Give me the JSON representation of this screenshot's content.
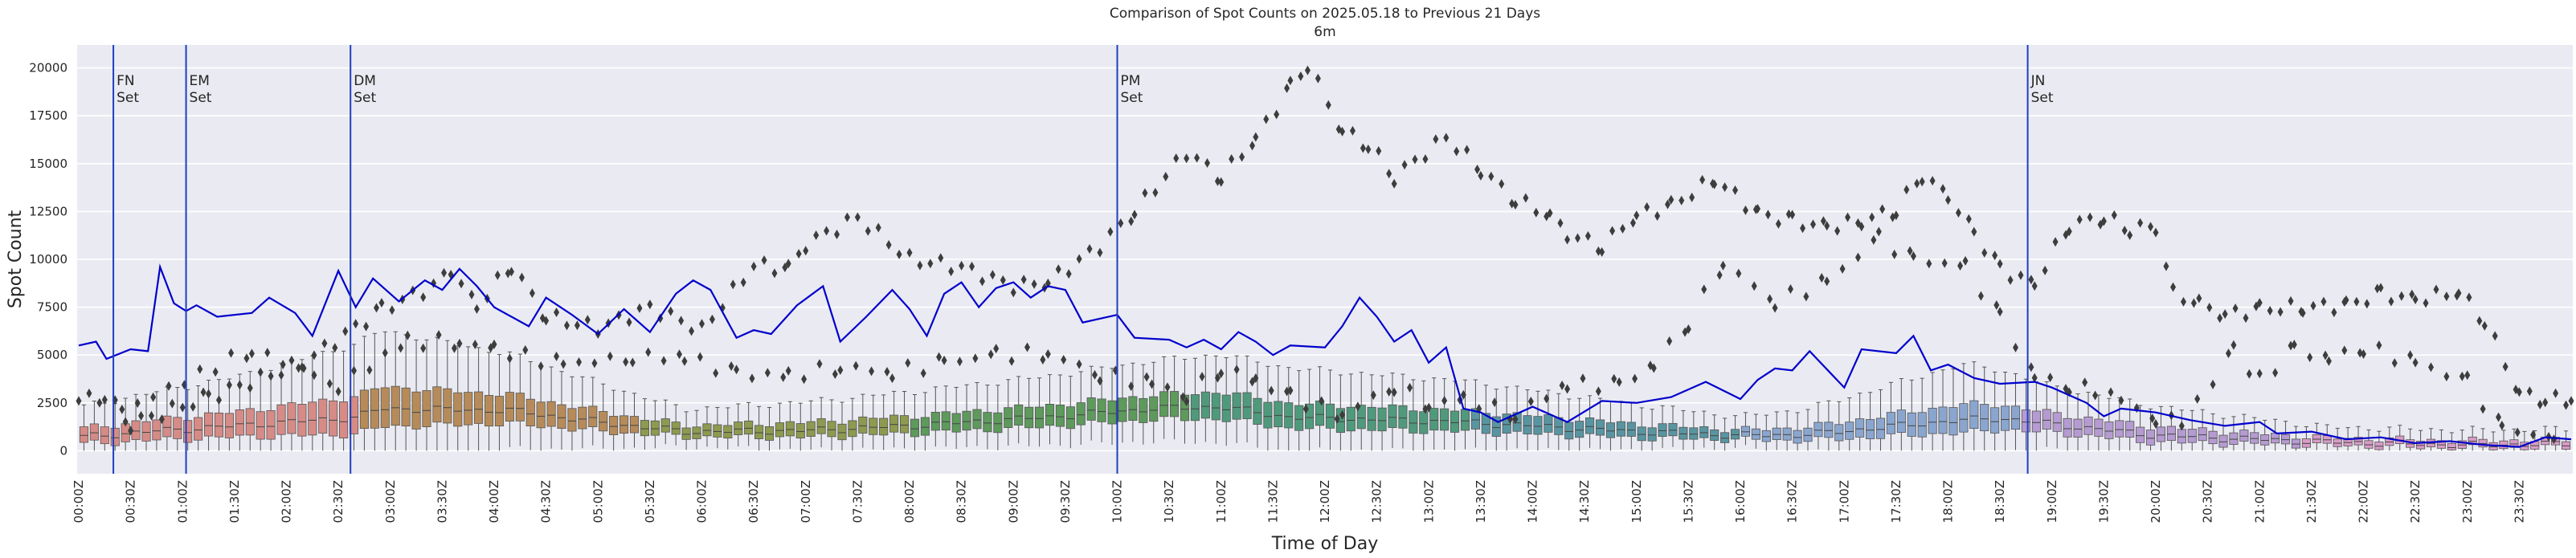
{
  "chart_data": {
    "type": "box",
    "title": "Comparison of Spot Counts on 2025.05.18 to Previous 21 Days",
    "subtitle": "6m",
    "xlabel": "Time of Day",
    "ylabel": "Spot Count",
    "ylim": [
      -1200,
      21200
    ],
    "yticks": [
      0,
      2500,
      5000,
      7500,
      10000,
      12500,
      15000,
      17500,
      20000
    ],
    "background": "#eaeaf2",
    "grid": true,
    "x_tick_labels": [
      "00:00Z",
      "00:30Z",
      "01:00Z",
      "01:30Z",
      "02:00Z",
      "02:30Z",
      "03:00Z",
      "03:30Z",
      "04:00Z",
      "04:30Z",
      "05:00Z",
      "05:30Z",
      "06:00Z",
      "06:30Z",
      "07:00Z",
      "07:30Z",
      "08:00Z",
      "08:30Z",
      "09:00Z",
      "09:30Z",
      "10:00Z",
      "10:30Z",
      "11:00Z",
      "11:30Z",
      "12:00Z",
      "12:30Z",
      "13:00Z",
      "13:30Z",
      "14:00Z",
      "14:30Z",
      "15:00Z",
      "15:30Z",
      "16:00Z",
      "16:30Z",
      "17:00Z",
      "17:30Z",
      "18:00Z",
      "18:30Z",
      "19:00Z",
      "19:30Z",
      "20:00Z",
      "20:30Z",
      "21:00Z",
      "21:30Z",
      "22:00Z",
      "22:30Z",
      "23:00Z",
      "23:30Z"
    ],
    "box_colors": [
      "#d68b86",
      "#b68b59",
      "#8d9a4f",
      "#5d9a5c",
      "#4f9a7c",
      "#5895a1",
      "#8aa6cf",
      "#b59bd1",
      "#d89bc6"
    ],
    "line_color": "#0000cc",
    "annotation_color": "#1f3fbf",
    "annotations": [
      {
        "time": "00:20",
        "line1": "FN",
        "line2": "Set"
      },
      {
        "time": "01:02",
        "line1": "EM",
        "line2": "Set"
      },
      {
        "time": "02:37",
        "line1": "DM",
        "line2": "Set"
      },
      {
        "time": "10:00",
        "line1": "PM",
        "line2": "Set"
      },
      {
        "time": "18:46",
        "line1": "JN",
        "line2": "Set"
      }
    ],
    "median_profile": [
      [
        0,
        700
      ],
      [
        40,
        1000
      ],
      [
        90,
        1300
      ],
      [
        130,
        1550
      ],
      [
        160,
        1750
      ],
      [
        175,
        2200
      ],
      [
        250,
        2100
      ],
      [
        300,
        1500
      ],
      [
        350,
        1000
      ],
      [
        420,
        1050
      ],
      [
        480,
        1300
      ],
      [
        560,
        1750
      ],
      [
        620,
        2200
      ],
      [
        660,
        2300
      ],
      [
        700,
        1750
      ],
      [
        800,
        1500
      ],
      [
        900,
        1000
      ],
      [
        960,
        800
      ],
      [
        1000,
        850
      ],
      [
        1080,
        1550
      ],
      [
        1110,
        1700
      ],
      [
        1140,
        1400
      ],
      [
        1200,
        800
      ],
      [
        1300,
        450
      ],
      [
        1380,
        300
      ],
      [
        1440,
        350
      ]
    ],
    "iqr_profile": [
      [
        0,
        800
      ],
      [
        90,
        1300
      ],
      [
        175,
        2100
      ],
      [
        250,
        1500
      ],
      [
        350,
        600
      ],
      [
        560,
        1100
      ],
      [
        660,
        1400
      ],
      [
        800,
        1100
      ],
      [
        960,
        500
      ],
      [
        1000,
        700
      ],
      [
        1090,
        1500
      ],
      [
        1140,
        1000
      ],
      [
        1300,
        400
      ],
      [
        1440,
        400
      ]
    ],
    "current_day_line": [
      [
        0,
        5500
      ],
      [
        10,
        5700
      ],
      [
        16,
        4800
      ],
      [
        30,
        5300
      ],
      [
        40,
        5200
      ],
      [
        47,
        9600
      ],
      [
        55,
        7700
      ],
      [
        62,
        7300
      ],
      [
        68,
        7600
      ],
      [
        80,
        7000
      ],
      [
        100,
        7200
      ],
      [
        110,
        8000
      ],
      [
        125,
        7200
      ],
      [
        135,
        6000
      ],
      [
        150,
        9400
      ],
      [
        160,
        7500
      ],
      [
        170,
        9000
      ],
      [
        185,
        7800
      ],
      [
        200,
        8900
      ],
      [
        210,
        8400
      ],
      [
        220,
        9500
      ],
      [
        230,
        8600
      ],
      [
        240,
        7500
      ],
      [
        260,
        6500
      ],
      [
        270,
        8000
      ],
      [
        285,
        7100
      ],
      [
        300,
        6100
      ],
      [
        315,
        7400
      ],
      [
        330,
        6200
      ],
      [
        345,
        8200
      ],
      [
        355,
        8900
      ],
      [
        365,
        8400
      ],
      [
        380,
        5900
      ],
      [
        390,
        6300
      ],
      [
        400,
        6100
      ],
      [
        415,
        7600
      ],
      [
        430,
        8600
      ],
      [
        440,
        5700
      ],
      [
        455,
        7000
      ],
      [
        470,
        8400
      ],
      [
        480,
        7400
      ],
      [
        490,
        6000
      ],
      [
        500,
        8200
      ],
      [
        510,
        8800
      ],
      [
        520,
        7500
      ],
      [
        530,
        8500
      ],
      [
        540,
        8800
      ],
      [
        550,
        8000
      ],
      [
        560,
        8600
      ],
      [
        570,
        8400
      ],
      [
        580,
        6700
      ],
      [
        600,
        7100
      ],
      [
        610,
        5900
      ],
      [
        630,
        5800
      ],
      [
        640,
        5400
      ],
      [
        650,
        5800
      ],
      [
        660,
        5300
      ],
      [
        670,
        6200
      ],
      [
        680,
        5700
      ],
      [
        690,
        5000
      ],
      [
        700,
        5500
      ],
      [
        720,
        5400
      ],
      [
        730,
        6500
      ],
      [
        740,
        8000
      ],
      [
        750,
        7000
      ],
      [
        760,
        5700
      ],
      [
        770,
        6300
      ],
      [
        780,
        4600
      ],
      [
        790,
        5400
      ],
      [
        800,
        2200
      ],
      [
        810,
        2000
      ],
      [
        820,
        1500
      ],
      [
        840,
        2300
      ],
      [
        860,
        1500
      ],
      [
        880,
        2600
      ],
      [
        900,
        2500
      ],
      [
        920,
        2800
      ],
      [
        940,
        3600
      ],
      [
        960,
        2700
      ],
      [
        970,
        3700
      ],
      [
        980,
        4300
      ],
      [
        990,
        4200
      ],
      [
        1000,
        5200
      ],
      [
        1020,
        3300
      ],
      [
        1030,
        5300
      ],
      [
        1050,
        5100
      ],
      [
        1060,
        6000
      ],
      [
        1070,
        4200
      ],
      [
        1080,
        4500
      ],
      [
        1095,
        3800
      ],
      [
        1110,
        3500
      ],
      [
        1130,
        3600
      ],
      [
        1140,
        3300
      ],
      [
        1160,
        2500
      ],
      [
        1170,
        1800
      ],
      [
        1180,
        2200
      ],
      [
        1200,
        2000
      ],
      [
        1220,
        1600
      ],
      [
        1240,
        1300
      ],
      [
        1260,
        1500
      ],
      [
        1270,
        900
      ],
      [
        1290,
        1000
      ],
      [
        1310,
        600
      ],
      [
        1330,
        700
      ],
      [
        1350,
        400
      ],
      [
        1370,
        500
      ],
      [
        1390,
        300
      ],
      [
        1410,
        200
      ],
      [
        1425,
        700
      ],
      [
        1440,
        600
      ]
    ],
    "previous_max_outliers": [
      [
        0,
        2600
      ],
      [
        15,
        2900
      ],
      [
        30,
        1400
      ],
      [
        75,
        2800
      ],
      [
        130,
        4600
      ],
      [
        175,
        7400
      ],
      [
        205,
        8600
      ],
      [
        215,
        9500
      ],
      [
        230,
        7500
      ],
      [
        250,
        9700
      ],
      [
        270,
        7000
      ],
      [
        300,
        6400
      ],
      [
        330,
        7500
      ],
      [
        360,
        6300
      ],
      [
        390,
        9700
      ],
      [
        410,
        9500
      ],
      [
        420,
        10800
      ],
      [
        450,
        12200
      ],
      [
        480,
        10000
      ],
      [
        510,
        9600
      ],
      [
        540,
        8600
      ],
      [
        560,
        8800
      ],
      [
        590,
        10700
      ],
      [
        610,
        12500
      ],
      [
        640,
        15600
      ],
      [
        660,
        14300
      ],
      [
        680,
        16300
      ],
      [
        700,
        19000
      ],
      [
        710,
        20200
      ],
      [
        730,
        16700
      ],
      [
        745,
        16000
      ],
      [
        760,
        14300
      ],
      [
        790,
        16400
      ],
      [
        810,
        14700
      ],
      [
        830,
        13100
      ],
      [
        850,
        12300
      ],
      [
        860,
        11300
      ],
      [
        880,
        10700
      ],
      [
        900,
        12300
      ],
      [
        920,
        12800
      ],
      [
        945,
        14200
      ],
      [
        970,
        12400
      ],
      [
        990,
        12000
      ],
      [
        1010,
        11700
      ],
      [
        1030,
        12000
      ],
      [
        1050,
        12600
      ],
      [
        1065,
        14400
      ],
      [
        1080,
        13300
      ],
      [
        1095,
        11400
      ],
      [
        1110,
        9500
      ],
      [
        1130,
        8700
      ],
      [
        1150,
        11800
      ],
      [
        1170,
        12200
      ],
      [
        1185,
        11600
      ],
      [
        1200,
        11700
      ],
      [
        1210,
        8200
      ],
      [
        1225,
        7700
      ],
      [
        1240,
        7100
      ],
      [
        1260,
        7400
      ],
      [
        1285,
        7500
      ],
      [
        1310,
        7600
      ],
      [
        1330,
        8200
      ],
      [
        1350,
        7900
      ],
      [
        1375,
        8300
      ],
      [
        1390,
        6800
      ],
      [
        1410,
        3000
      ],
      [
        1425,
        2700
      ],
      [
        1440,
        2600
      ]
    ],
    "previous_mid_outliers": [
      [
        25,
        2100
      ],
      [
        100,
        5300
      ],
      [
        150,
        3400
      ],
      [
        190,
        5700
      ],
      [
        220,
        5700
      ],
      [
        240,
        5300
      ],
      [
        280,
        4500
      ],
      [
        320,
        4900
      ],
      [
        350,
        4900
      ],
      [
        380,
        4000
      ],
      [
        410,
        3900
      ],
      [
        440,
        4400
      ],
      [
        470,
        4100
      ],
      [
        500,
        4600
      ],
      [
        530,
        5000
      ],
      [
        560,
        5100
      ],
      [
        590,
        4000
      ],
      [
        620,
        3500
      ],
      [
        640,
        2900
      ],
      [
        660,
        4300
      ],
      [
        680,
        3700
      ],
      [
        700,
        2800
      ],
      [
        730,
        1900
      ],
      [
        760,
        3400
      ],
      [
        780,
        2400
      ],
      [
        800,
        2700
      ],
      [
        830,
        1900
      ],
      [
        860,
        3500
      ],
      [
        890,
        3400
      ],
      [
        910,
        4500
      ],
      [
        930,
        6700
      ],
      [
        950,
        9800
      ],
      [
        980,
        7800
      ],
      [
        1010,
        8800
      ],
      [
        1040,
        11100
      ],
      [
        1060,
        10000
      ],
      [
        1090,
        9600
      ],
      [
        1110,
        7000
      ],
      [
        1130,
        3900
      ],
      [
        1150,
        3400
      ],
      [
        1165,
        3100
      ],
      [
        1180,
        2600
      ],
      [
        1200,
        1700
      ],
      [
        1215,
        1400
      ],
      [
        1245,
        5200
      ],
      [
        1260,
        3700
      ],
      [
        1280,
        5300
      ],
      [
        1300,
        4800
      ],
      [
        1320,
        5400
      ],
      [
        1350,
        4600
      ],
      [
        1380,
        3600
      ],
      [
        1400,
        1200
      ],
      [
        1430,
        600
      ]
    ]
  }
}
